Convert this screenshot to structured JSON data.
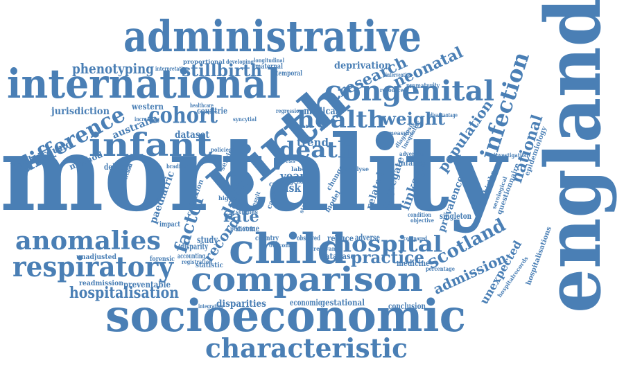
{
  "word_cloud": {
    "color": "#4a7fb5",
    "words": [
      "mortality",
      "england",
      "birth",
      "administrative",
      "international",
      "socioeconomic",
      "comparison",
      "child",
      "infant",
      "congenital",
      "characteristic",
      "respiratory",
      "anomalies",
      "difference",
      "cohort",
      "death",
      "health",
      "hospital",
      "factor",
      "infection",
      "scotland",
      "national",
      "hospitalisation",
      "research",
      "neonatal",
      "stillbirth",
      "phenotyping",
      "weight",
      "population",
      "admission",
      "data",
      "rate",
      "record",
      "trend",
      "year",
      "risk",
      "practice",
      "linkage",
      "prevalence",
      "unexpected",
      "hospitalisations",
      "epidemiology",
      "livebirths",
      "deprivation",
      "prematurity",
      "medical",
      "jurisdiction",
      "western",
      "australia",
      "background",
      "method",
      "delivery",
      "dataset",
      "countrie",
      "paediatric",
      "collection",
      "study",
      "disparity",
      "accounting",
      "forensic",
      "statistic",
      "unadjusted",
      "readmission",
      "preventable",
      "disparities",
      "economic",
      "gestational",
      "conclusion",
      "database",
      "medicine",
      "reduce",
      "adverse",
      "singleton",
      "hospitalrecords",
      "questionnaire",
      "serological",
      "infancy",
      "inequality",
      "measure",
      "income",
      "country",
      "observed",
      "impact",
      "highest",
      "related",
      "aggregate",
      "model",
      "change",
      "compared",
      "maternal",
      "temporal",
      "resource",
      "intervention",
      "increasing",
      "regression",
      "proportional",
      "developing",
      "longitudinal",
      "interpretation",
      "healthcare",
      "diagnosis",
      "adversity",
      "disadvantage",
      "objective",
      "condition",
      "pediatric",
      "percentage",
      "registration",
      "integration",
      "outcome",
      "service",
      "policies",
      "syncytial",
      "excess",
      "crude",
      "cause",
      "labor",
      "gender",
      "status",
      "care",
      "prevention",
      "investigation",
      "bradford",
      "analyse",
      "studies",
      "result",
      "relevant"
    ]
  }
}
